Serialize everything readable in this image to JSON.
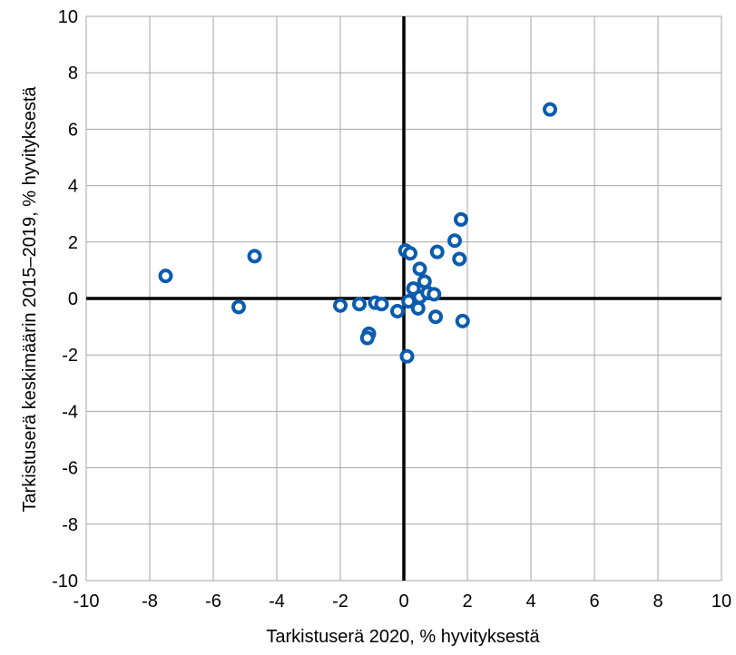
{
  "chart_data": {
    "type": "scatter",
    "title": "",
    "xlabel": "Tarkistuserä 2020, % hyvityksestä",
    "ylabel": "Tarkistuserä keskimäärin 2015–2019, % hyvityksestä",
    "xlim": [
      -10,
      10
    ],
    "ylim": [
      -10,
      10
    ],
    "xticks": [
      -10,
      -8,
      -6,
      -4,
      -2,
      0,
      2,
      4,
      6,
      8,
      10
    ],
    "yticks": [
      -10,
      -8,
      -6,
      -4,
      -2,
      0,
      2,
      4,
      6,
      8,
      10
    ],
    "grid": true,
    "marker_color": "#0b5cad",
    "series": [
      {
        "points": [
          {
            "x": -7.5,
            "y": 0.8
          },
          {
            "x": -4.7,
            "y": 1.5
          },
          {
            "x": -5.2,
            "y": -0.3
          },
          {
            "x": -2.0,
            "y": -0.25
          },
          {
            "x": -1.4,
            "y": -0.2
          },
          {
            "x": -0.9,
            "y": -0.15
          },
          {
            "x": -0.7,
            "y": -0.2
          },
          {
            "x": -1.1,
            "y": -1.25
          },
          {
            "x": -1.15,
            "y": -1.4
          },
          {
            "x": -0.2,
            "y": -0.45
          },
          {
            "x": 0.1,
            "y": -2.05
          },
          {
            "x": 0.05,
            "y": 1.7
          },
          {
            "x": 0.2,
            "y": 1.6
          },
          {
            "x": 0.15,
            "y": -0.1
          },
          {
            "x": 0.3,
            "y": 0.35
          },
          {
            "x": 0.45,
            "y": -0.35
          },
          {
            "x": 0.5,
            "y": 1.05
          },
          {
            "x": 0.5,
            "y": 0.05
          },
          {
            "x": 0.65,
            "y": 0.6
          },
          {
            "x": 0.75,
            "y": 0.2
          },
          {
            "x": 0.95,
            "y": 0.15
          },
          {
            "x": 1.0,
            "y": -0.65
          },
          {
            "x": 1.05,
            "y": 1.65
          },
          {
            "x": 1.6,
            "y": 2.05
          },
          {
            "x": 1.75,
            "y": 1.4
          },
          {
            "x": 1.8,
            "y": 2.8
          },
          {
            "x": 1.85,
            "y": -0.8
          },
          {
            "x": 4.6,
            "y": 6.7
          }
        ]
      }
    ]
  }
}
